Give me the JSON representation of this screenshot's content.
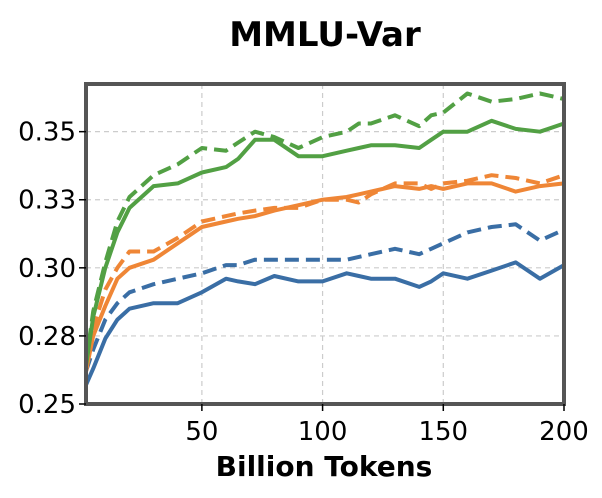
{
  "chart_data": {
    "type": "line",
    "title": "MMLU-Var",
    "xlabel": "Billion Tokens",
    "ylabel": "",
    "xlim": [
      2,
      200
    ],
    "ylim": [
      0.25,
      0.3675
    ],
    "xticks": [
      50,
      100,
      150,
      200
    ],
    "yticks": [
      0.25,
      0.275,
      0.3,
      0.325,
      0.35
    ],
    "ytick_labels": [
      "0.25",
      "0.28",
      "0.30",
      "0.33",
      "0.35"
    ],
    "xtick_labels": [
      "50",
      "100",
      "150",
      "200"
    ],
    "grid": true,
    "legend": "none",
    "x": [
      2,
      5,
      10,
      15,
      20,
      30,
      40,
      50,
      60,
      65,
      72,
      80,
      90,
      100,
      110,
      115,
      120,
      130,
      140,
      145,
      150,
      160,
      170,
      180,
      190,
      200
    ],
    "series": [
      {
        "color": "#3a6ea5",
        "dash": false,
        "values": [
          0.257,
          0.263,
          0.274,
          0.281,
          0.285,
          0.287,
          0.287,
          0.291,
          0.296,
          0.295,
          0.294,
          0.297,
          0.295,
          0.295,
          0.298,
          0.297,
          0.296,
          0.296,
          0.293,
          0.295,
          0.298,
          0.296,
          0.299,
          0.302,
          0.296,
          0.301
        ]
      },
      {
        "color": "#3a6ea5",
        "dash": true,
        "values": [
          0.262,
          0.27,
          0.281,
          0.287,
          0.291,
          0.294,
          0.296,
          0.298,
          0.301,
          0.301,
          0.303,
          0.303,
          0.303,
          0.303,
          0.303,
          0.304,
          0.305,
          0.307,
          0.305,
          0.307,
          0.309,
          0.313,
          0.315,
          0.316,
          0.31,
          0.314
        ]
      },
      {
        "color": "#ef8636",
        "dash": false,
        "values": [
          0.262,
          0.275,
          0.286,
          0.296,
          0.3,
          0.303,
          0.309,
          0.315,
          0.317,
          0.318,
          0.319,
          0.321,
          0.323,
          0.325,
          0.326,
          0.327,
          0.328,
          0.33,
          0.329,
          0.33,
          0.329,
          0.331,
          0.331,
          0.328,
          0.33,
          0.331
        ]
      },
      {
        "color": "#ef8636",
        "dash": true,
        "values": [
          0.262,
          0.278,
          0.292,
          0.3,
          0.306,
          0.306,
          0.311,
          0.317,
          0.319,
          0.32,
          0.321,
          0.322,
          0.322,
          0.325,
          0.325,
          0.324,
          0.327,
          0.331,
          0.331,
          0.329,
          0.331,
          0.332,
          0.334,
          0.333,
          0.331,
          0.334
        ]
      },
      {
        "color": "#52a044",
        "dash": false,
        "values": [
          0.264,
          0.282,
          0.3,
          0.313,
          0.322,
          0.33,
          0.331,
          0.335,
          0.337,
          0.34,
          0.347,
          0.347,
          0.341,
          0.341,
          0.343,
          0.344,
          0.345,
          0.345,
          0.344,
          0.347,
          0.35,
          0.35,
          0.354,
          0.351,
          0.35,
          0.353
        ]
      },
      {
        "color": "#52a044",
        "dash": true,
        "values": [
          0.265,
          0.284,
          0.302,
          0.317,
          0.326,
          0.334,
          0.338,
          0.344,
          0.343,
          0.346,
          0.35,
          0.348,
          0.344,
          0.348,
          0.35,
          0.353,
          0.353,
          0.356,
          0.352,
          0.356,
          0.357,
          0.364,
          0.361,
          0.362,
          0.364,
          0.362
        ]
      }
    ]
  }
}
